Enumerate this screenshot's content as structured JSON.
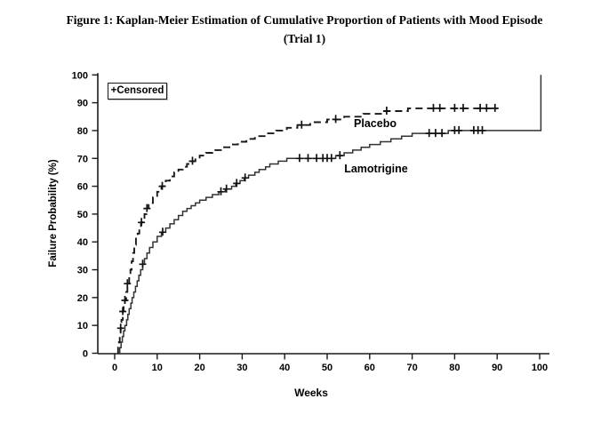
{
  "figure": {
    "title_line1": "Figure 1: Kaplan-Meier Estimation of Cumulative Proportion of Patients with Mood Episode",
    "title_line2": "(Trial 1)"
  },
  "legend": {
    "censored_label": "+Censored"
  },
  "colors": {
    "axis": "#1a1a1a",
    "placebo_line": "#1a1a1a",
    "lamotrigine_line": "#333333",
    "censor_mark": "#111111",
    "text": "#000000"
  },
  "chart_data": {
    "type": "line",
    "subtype": "kaplan-meier-step",
    "title": "Kaplan-Meier Estimation of Cumulative Proportion of Patients with Mood Episode (Trial 1)",
    "xlabel": "Weeks",
    "ylabel": "Failure Probability (%)",
    "xlim": [
      0,
      100
    ],
    "ylim": [
      0,
      100
    ],
    "xticks": [
      0,
      10,
      20,
      30,
      40,
      50,
      60,
      70,
      80,
      90,
      100
    ],
    "yticks": [
      0,
      10,
      20,
      30,
      40,
      50,
      60,
      70,
      80,
      90,
      100
    ],
    "grid": false,
    "legend_position": "top-left-inside",
    "series": [
      {
        "name": "Placebo",
        "style": "dashed",
        "points": [
          [
            0.6,
            0
          ],
          [
            0.8,
            2
          ],
          [
            1.0,
            4
          ],
          [
            1.2,
            7
          ],
          [
            1.4,
            9
          ],
          [
            1.6,
            12
          ],
          [
            1.9,
            15
          ],
          [
            2.1,
            17
          ],
          [
            2.4,
            19
          ],
          [
            2.7,
            22
          ],
          [
            3.0,
            25
          ],
          [
            3.4,
            27
          ],
          [
            3.7,
            30
          ],
          [
            4.0,
            33
          ],
          [
            4.3,
            36
          ],
          [
            4.6,
            39
          ],
          [
            5.0,
            42
          ],
          [
            5.4,
            43
          ],
          [
            5.8,
            45
          ],
          [
            6.2,
            47
          ],
          [
            6.6,
            48
          ],
          [
            7.0,
            50
          ],
          [
            7.5,
            52
          ],
          [
            8.0,
            54
          ],
          [
            9.0,
            56
          ],
          [
            10.0,
            58
          ],
          [
            11.0,
            60
          ],
          [
            12.0,
            62
          ],
          [
            13.0,
            63.5
          ],
          [
            14.0,
            65
          ],
          [
            15.0,
            66
          ],
          [
            16.0,
            67
          ],
          [
            17.0,
            68
          ],
          [
            18.0,
            69
          ],
          [
            19.0,
            70
          ],
          [
            20.0,
            71
          ],
          [
            21.5,
            72
          ],
          [
            23.0,
            73
          ],
          [
            25.0,
            74
          ],
          [
            27.0,
            75
          ],
          [
            29.0,
            76
          ],
          [
            31.0,
            77
          ],
          [
            33.0,
            78
          ],
          [
            35.5,
            79
          ],
          [
            38.0,
            80
          ],
          [
            40.5,
            81
          ],
          [
            43.0,
            82
          ],
          [
            46.0,
            83
          ],
          [
            50.0,
            84
          ],
          [
            54.0,
            85
          ],
          [
            58.5,
            86
          ],
          [
            63.0,
            87
          ],
          [
            69.0,
            88
          ],
          [
            90.0,
            88
          ]
        ],
        "censored": [
          [
            1.4,
            9
          ],
          [
            1.9,
            15
          ],
          [
            2.4,
            19
          ],
          [
            3.0,
            25
          ],
          [
            6.3,
            47
          ],
          [
            7.6,
            52
          ],
          [
            11.2,
            60
          ],
          [
            18.3,
            69
          ],
          [
            44.0,
            82
          ],
          [
            52.0,
            84
          ],
          [
            64.0,
            87
          ],
          [
            75.0,
            88
          ],
          [
            76.5,
            88
          ],
          [
            80.0,
            88
          ],
          [
            82.0,
            88
          ],
          [
            86.0,
            88
          ],
          [
            87.5,
            88
          ],
          [
            89.5,
            88
          ]
        ]
      },
      {
        "name": "Lamotrigine",
        "style": "solid",
        "points": [
          [
            0.9,
            0
          ],
          [
            1.2,
            2
          ],
          [
            1.5,
            4
          ],
          [
            1.8,
            6
          ],
          [
            2.1,
            8
          ],
          [
            2.4,
            10
          ],
          [
            2.8,
            12
          ],
          [
            3.1,
            14
          ],
          [
            3.4,
            16
          ],
          [
            3.8,
            18
          ],
          [
            4.1,
            20
          ],
          [
            4.5,
            22
          ],
          [
            4.9,
            24
          ],
          [
            5.3,
            26
          ],
          [
            5.7,
            28
          ],
          [
            6.1,
            30
          ],
          [
            6.6,
            32
          ],
          [
            7.0,
            34
          ],
          [
            7.6,
            36
          ],
          [
            8.2,
            38
          ],
          [
            9.0,
            40
          ],
          [
            10.0,
            42
          ],
          [
            11.0,
            43.5
          ],
          [
            12.0,
            45
          ],
          [
            13.0,
            46.5
          ],
          [
            14.0,
            48
          ],
          [
            15.0,
            49.5
          ],
          [
            16.0,
            51
          ],
          [
            17.0,
            52
          ],
          [
            18.0,
            53
          ],
          [
            19.0,
            54
          ],
          [
            20.0,
            55
          ],
          [
            21.5,
            56
          ],
          [
            23.0,
            57
          ],
          [
            24.5,
            58
          ],
          [
            26.0,
            59
          ],
          [
            27.5,
            60
          ],
          [
            28.5,
            61
          ],
          [
            29.5,
            62
          ],
          [
            30.5,
            63
          ],
          [
            31.5,
            64
          ],
          [
            33.0,
            65
          ],
          [
            34.0,
            66
          ],
          [
            35.5,
            67
          ],
          [
            36.5,
            68
          ],
          [
            38.5,
            69
          ],
          [
            40.5,
            70
          ],
          [
            52.0,
            71
          ],
          [
            54.0,
            72
          ],
          [
            56.0,
            73
          ],
          [
            58.0,
            74
          ],
          [
            60.0,
            75
          ],
          [
            62.5,
            76
          ],
          [
            65.0,
            77
          ],
          [
            67.5,
            78
          ],
          [
            70.0,
            79
          ],
          [
            78.5,
            80
          ],
          [
            100.3,
            80
          ],
          [
            100.3,
            100
          ]
        ],
        "censored": [
          [
            6.6,
            32
          ],
          [
            11.3,
            43.5
          ],
          [
            25.0,
            58
          ],
          [
            26.3,
            59
          ],
          [
            28.7,
            61
          ],
          [
            30.7,
            63
          ],
          [
            43.5,
            70
          ],
          [
            45.5,
            70
          ],
          [
            47.5,
            70
          ],
          [
            49.0,
            70
          ],
          [
            50.0,
            70
          ],
          [
            51.0,
            70
          ],
          [
            53.0,
            71
          ],
          [
            74.0,
            79
          ],
          [
            75.5,
            79
          ],
          [
            77.0,
            79
          ],
          [
            80.0,
            80
          ],
          [
            81.0,
            80
          ],
          [
            84.5,
            80
          ],
          [
            85.5,
            80
          ],
          [
            86.5,
            80
          ]
        ]
      }
    ],
    "annotations": [
      {
        "text": "Placebo",
        "week": 61.3,
        "pct": 81.3
      },
      {
        "text": "Lamotrigine",
        "week": 61.5,
        "pct": 65.0
      }
    ]
  }
}
